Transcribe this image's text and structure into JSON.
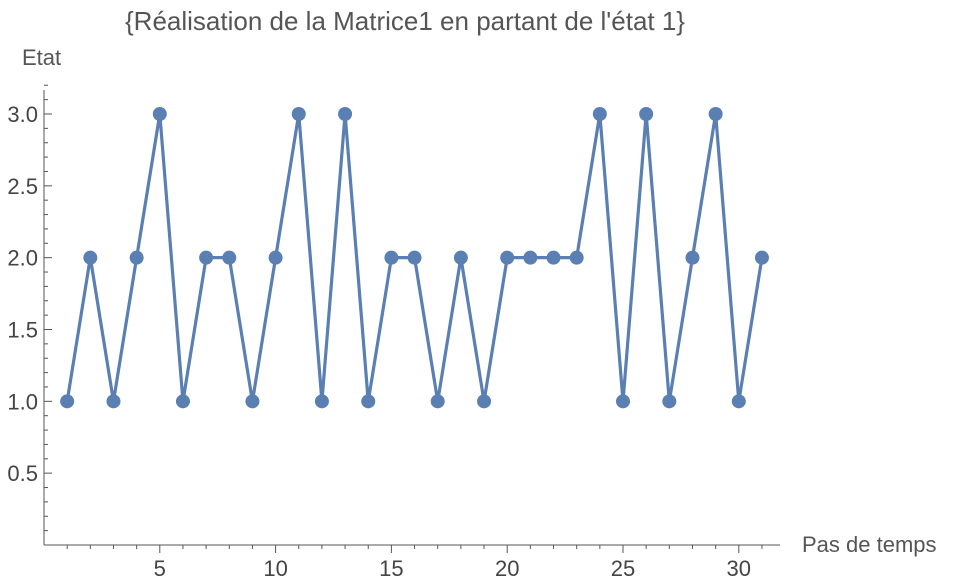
{
  "chart_data": {
    "type": "line",
    "title": "{Réalisation de la Matrice1 en partant de l'état 1}",
    "xlabel": "Pas de temps",
    "ylabel": "Etat",
    "x": [
      1,
      2,
      3,
      4,
      5,
      6,
      7,
      8,
      9,
      10,
      11,
      12,
      13,
      14,
      15,
      16,
      17,
      18,
      19,
      20,
      21,
      22,
      23,
      24,
      25,
      26,
      27,
      28,
      29,
      30,
      31
    ],
    "series": [
      {
        "values": [
          1,
          2,
          1,
          2,
          3,
          1,
          2,
          2,
          1,
          2,
          3,
          1,
          3,
          1,
          2,
          2,
          1,
          2,
          1,
          2,
          2,
          2,
          2,
          3,
          1,
          3,
          1,
          2,
          3,
          1,
          2
        ],
        "color": "#5a7fb3"
      }
    ],
    "xlim": [
      0,
      32
    ],
    "ylim": [
      0,
      3.2
    ],
    "xticks": [
      5,
      10,
      15,
      20,
      25,
      30
    ],
    "yticks": [
      0.5,
      1.0,
      1.5,
      2.0,
      2.5,
      3.0
    ],
    "yticks_labels": [
      "0.5",
      "1.0",
      "1.5",
      "2.0",
      "2.5",
      "3.0"
    ],
    "grid": false,
    "markers": true
  }
}
